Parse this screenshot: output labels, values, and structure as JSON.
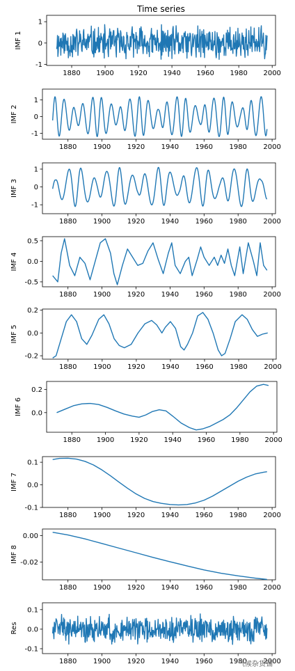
{
  "chart_data": [
    {
      "type": "line",
      "title": "Time series",
      "ylabel": "IMF 1",
      "xlim": [
        1865,
        2002
      ],
      "ylim": [
        -1.05,
        1.3
      ],
      "yticks": [
        -1,
        0,
        1
      ],
      "xticks": [
        1880,
        1900,
        1920,
        1940,
        1960,
        1980,
        2000
      ],
      "color": "#1f77b4",
      "x_start": 1871,
      "x_end": 1997,
      "shape": "noise",
      "amplitude": 0.9,
      "seed": 11,
      "series": [
        {
          "x": [
            1871,
            1997
          ],
          "y": [
            0.0,
            0.0
          ]
        }
      ]
    },
    {
      "type": "line",
      "title": "",
      "ylabel": "IMF 2",
      "xlim": [
        1865,
        2002
      ],
      "ylim": [
        -1.35,
        1.65
      ],
      "yticks": [
        -1,
        0,
        1
      ],
      "xticks": [
        1880,
        1900,
        1920,
        1940,
        1960,
        1980,
        2000
      ],
      "color": "#1f77b4",
      "shape": "osc",
      "period": 5.5,
      "amplitude": 1.2,
      "seed": 22
    },
    {
      "type": "line",
      "title": "",
      "ylabel": "IMF 3",
      "xlim": [
        1865,
        2002
      ],
      "ylim": [
        -1.5,
        1.35
      ],
      "yticks": [
        -1,
        0,
        1
      ],
      "xticks": [
        1880,
        1900,
        1920,
        1940,
        1960,
        1980,
        2000
      ],
      "color": "#1f77b4",
      "shape": "osc",
      "period": 7.5,
      "amplitude": 1.1,
      "seed": 33
    },
    {
      "type": "line",
      "title": "",
      "ylabel": "IMF 4",
      "xlim": [
        1865,
        2002
      ],
      "ylim": [
        -0.62,
        0.6
      ],
      "yticks": [
        -0.5,
        0.0,
        0.5
      ],
      "xticks": [
        1880,
        1900,
        1920,
        1940,
        1960,
        1980,
        2000
      ],
      "color": "#1f77b4",
      "points": [
        [
          1871,
          -0.35
        ],
        [
          1874,
          -0.5
        ],
        [
          1876,
          0.2
        ],
        [
          1878,
          0.55
        ],
        [
          1881,
          -0.1
        ],
        [
          1884,
          -0.35
        ],
        [
          1887,
          0.1
        ],
        [
          1890,
          -0.05
        ],
        [
          1893,
          -0.45
        ],
        [
          1896,
          0.0
        ],
        [
          1899,
          0.45
        ],
        [
          1902,
          0.55
        ],
        [
          1905,
          0.2
        ],
        [
          1907,
          -0.3
        ],
        [
          1909,
          -0.57
        ],
        [
          1912,
          -0.1
        ],
        [
          1915,
          0.3
        ],
        [
          1918,
          0.1
        ],
        [
          1921,
          -0.1
        ],
        [
          1924,
          -0.05
        ],
        [
          1927,
          0.25
        ],
        [
          1930,
          0.45
        ],
        [
          1933,
          0.05
        ],
        [
          1936,
          -0.3
        ],
        [
          1939,
          0.2
        ],
        [
          1941,
          0.45
        ],
        [
          1943,
          -0.1
        ],
        [
          1946,
          -0.3
        ],
        [
          1949,
          0.0
        ],
        [
          1951,
          0.1
        ],
        [
          1953,
          -0.35
        ],
        [
          1956,
          0.05
        ],
        [
          1958,
          0.35
        ],
        [
          1960,
          0.1
        ],
        [
          1963,
          -0.1
        ],
        [
          1966,
          0.1
        ],
        [
          1968,
          -0.1
        ],
        [
          1970,
          0.15
        ],
        [
          1972,
          -0.05
        ],
        [
          1974,
          0.3
        ],
        [
          1976,
          -0.1
        ],
        [
          1978,
          -0.35
        ],
        [
          1981,
          0.35
        ],
        [
          1983,
          -0.3
        ],
        [
          1986,
          0.45
        ],
        [
          1989,
          0.0
        ],
        [
          1991,
          -0.35
        ],
        [
          1993,
          0.45
        ],
        [
          1995,
          -0.1
        ],
        [
          1997,
          -0.22
        ]
      ]
    },
    {
      "type": "line",
      "title": "",
      "ylabel": "IMF 5",
      "xlim": [
        1865,
        2002
      ],
      "ylim": [
        -0.23,
        0.21
      ],
      "yticks": [
        -0.2,
        0.0,
        0.2
      ],
      "xticks": [
        1880,
        1900,
        1920,
        1940,
        1960,
        1980,
        2000
      ],
      "color": "#1f77b4",
      "points": [
        [
          1871,
          -0.22
        ],
        [
          1873,
          -0.2
        ],
        [
          1876,
          -0.05
        ],
        [
          1879,
          0.1
        ],
        [
          1882,
          0.16
        ],
        [
          1885,
          0.1
        ],
        [
          1888,
          -0.05
        ],
        [
          1891,
          -0.1
        ],
        [
          1894,
          -0.02
        ],
        [
          1898,
          0.12
        ],
        [
          1901,
          0.16
        ],
        [
          1904,
          0.08
        ],
        [
          1907,
          -0.05
        ],
        [
          1910,
          -0.11
        ],
        [
          1913,
          -0.13
        ],
        [
          1917,
          -0.1
        ],
        [
          1921,
          0.0
        ],
        [
          1925,
          0.08
        ],
        [
          1929,
          0.11
        ],
        [
          1932,
          0.07
        ],
        [
          1935,
          0.0
        ],
        [
          1937,
          0.05
        ],
        [
          1940,
          0.1
        ],
        [
          1943,
          0.04
        ],
        [
          1946,
          -0.12
        ],
        [
          1948,
          -0.15
        ],
        [
          1950,
          -0.1
        ],
        [
          1953,
          0.0
        ],
        [
          1956,
          0.15
        ],
        [
          1959,
          0.18
        ],
        [
          1962,
          0.12
        ],
        [
          1965,
          0.0
        ],
        [
          1968,
          -0.15
        ],
        [
          1970,
          -0.2
        ],
        [
          1972,
          -0.18
        ],
        [
          1975,
          -0.05
        ],
        [
          1978,
          0.1
        ],
        [
          1982,
          0.16
        ],
        [
          1985,
          0.12
        ],
        [
          1988,
          0.03
        ],
        [
          1991,
          -0.03
        ],
        [
          1994,
          -0.01
        ],
        [
          1997,
          0.0
        ]
      ]
    },
    {
      "type": "line",
      "title": "",
      "ylabel": "IMF 6",
      "xlim": [
        1865,
        2002
      ],
      "ylim": [
        -0.17,
        0.27
      ],
      "yticks": [
        0.0,
        0.2
      ],
      "xticks": [
        1880,
        1900,
        1920,
        1940,
        1960,
        1980,
        2000
      ],
      "color": "#1f77b4",
      "points": [
        [
          1871,
          0.0
        ],
        [
          1876,
          0.03
        ],
        [
          1881,
          0.06
        ],
        [
          1886,
          0.076
        ],
        [
          1891,
          0.08
        ],
        [
          1896,
          0.07
        ],
        [
          1901,
          0.045
        ],
        [
          1906,
          0.015
        ],
        [
          1911,
          -0.012
        ],
        [
          1916,
          -0.03
        ],
        [
          1920,
          -0.04
        ],
        [
          1924,
          -0.02
        ],
        [
          1928,
          0.01
        ],
        [
          1932,
          0.025
        ],
        [
          1936,
          0.015
        ],
        [
          1940,
          -0.03
        ],
        [
          1945,
          -0.09
        ],
        [
          1950,
          -0.13
        ],
        [
          1954,
          -0.15
        ],
        [
          1958,
          -0.14
        ],
        [
          1962,
          -0.12
        ],
        [
          1966,
          -0.09
        ],
        [
          1970,
          -0.06
        ],
        [
          1974,
          -0.02
        ],
        [
          1978,
          0.04
        ],
        [
          1982,
          0.11
        ],
        [
          1986,
          0.18
        ],
        [
          1990,
          0.23
        ],
        [
          1994,
          0.245
        ],
        [
          1997,
          0.235
        ]
      ]
    },
    {
      "type": "line",
      "title": "",
      "ylabel": "IMF 7",
      "xlim": [
        1865,
        2002
      ],
      "ylim": [
        -0.1,
        0.125
      ],
      "yticks": [
        -0.1,
        0.0,
        0.1
      ],
      "xticks": [
        1880,
        1900,
        1920,
        1940,
        1960,
        1980,
        2000
      ],
      "color": "#1f77b4",
      "points": [
        [
          1871,
          0.112
        ],
        [
          1875,
          0.117
        ],
        [
          1880,
          0.118
        ],
        [
          1885,
          0.114
        ],
        [
          1890,
          0.104
        ],
        [
          1895,
          0.088
        ],
        [
          1900,
          0.066
        ],
        [
          1905,
          0.04
        ],
        [
          1910,
          0.012
        ],
        [
          1915,
          -0.015
        ],
        [
          1920,
          -0.04
        ],
        [
          1925,
          -0.06
        ],
        [
          1930,
          -0.074
        ],
        [
          1935,
          -0.082
        ],
        [
          1940,
          -0.087
        ],
        [
          1945,
          -0.089
        ],
        [
          1950,
          -0.087
        ],
        [
          1955,
          -0.08
        ],
        [
          1960,
          -0.068
        ],
        [
          1965,
          -0.05
        ],
        [
          1970,
          -0.028
        ],
        [
          1975,
          -0.006
        ],
        [
          1980,
          0.016
        ],
        [
          1985,
          0.034
        ],
        [
          1990,
          0.048
        ],
        [
          1995,
          0.056
        ],
        [
          1997,
          0.058
        ]
      ]
    },
    {
      "type": "line",
      "title": "",
      "ylabel": "IMF 8",
      "xlim": [
        1865,
        2002
      ],
      "ylim": [
        -0.0335,
        0.005
      ],
      "yticks": [
        -0.02,
        0.0
      ],
      "xticks": [
        1880,
        1900,
        1920,
        1940,
        1960,
        1980,
        2000
      ],
      "color": "#1f77b4",
      "points": [
        [
          1871,
          0.0025
        ],
        [
          1880,
          0.0005
        ],
        [
          1890,
          -0.0025
        ],
        [
          1900,
          -0.006
        ],
        [
          1910,
          -0.0095
        ],
        [
          1920,
          -0.013
        ],
        [
          1930,
          -0.0165
        ],
        [
          1940,
          -0.0198
        ],
        [
          1950,
          -0.023
        ],
        [
          1960,
          -0.026
        ],
        [
          1970,
          -0.0285
        ],
        [
          1980,
          -0.0305
        ],
        [
          1990,
          -0.0322
        ],
        [
          1997,
          -0.0332
        ]
      ]
    },
    {
      "type": "line",
      "title": "",
      "ylabel": "Res",
      "xlim": [
        1865,
        2002
      ],
      "ylim": [
        -0.125,
        0.135
      ],
      "yticks": [
        -0.1,
        0.0,
        0.1
      ],
      "xticks": [
        1880,
        1900,
        1920,
        1940,
        1960,
        1980,
        2000
      ],
      "color": "#1f77b4",
      "shape": "noise",
      "amplitude": 0.08,
      "seed": 99
    }
  ],
  "watermark": "气候杂货铺"
}
